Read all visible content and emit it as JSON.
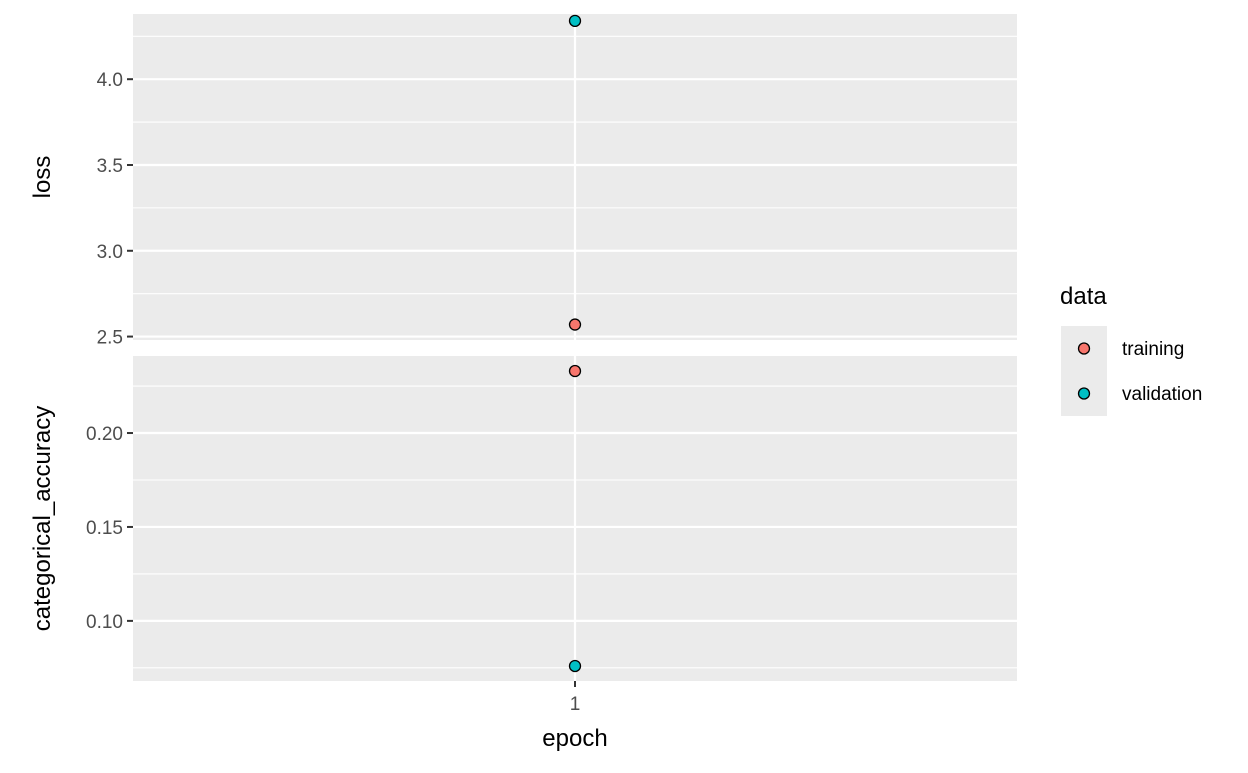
{
  "chart_data": {
    "type": "scatter",
    "xlabel": "epoch",
    "x_categories": [
      "1"
    ],
    "legend": {
      "title": "data",
      "position": "right",
      "entries": [
        {
          "label": "training",
          "color": "#F8766D"
        },
        {
          "label": "validation",
          "color": "#00BFC4"
        }
      ]
    },
    "panels": [
      {
        "ylabel": "loss",
        "ylim": [
          2.48,
          4.38
        ],
        "yticks": [
          2.5,
          3.0,
          3.5,
          4.0
        ],
        "ytick_labels": [
          "2.5",
          "3.0",
          "3.5",
          "4.0"
        ],
        "series": [
          {
            "name": "training",
            "x": [
              "1"
            ],
            "y": [
              2.57
            ]
          },
          {
            "name": "validation",
            "x": [
              "1"
            ],
            "y": [
              4.34
            ]
          }
        ]
      },
      {
        "ylabel": "categorical_accuracy",
        "ylim": [
          0.068,
          0.241
        ],
        "yticks": [
          0.1,
          0.15,
          0.2
        ],
        "ytick_labels": [
          "0.10",
          "0.15",
          "0.20"
        ],
        "series": [
          {
            "name": "training",
            "x": [
              "1"
            ],
            "y": [
              0.233
            ]
          },
          {
            "name": "validation",
            "x": [
              "1"
            ],
            "y": [
              0.076
            ]
          }
        ]
      }
    ],
    "grid": true,
    "colors": {
      "panel_background": "#EBEBEB",
      "grid": "#FFFFFF",
      "training": "#F8766D",
      "validation": "#00BFC4"
    }
  }
}
